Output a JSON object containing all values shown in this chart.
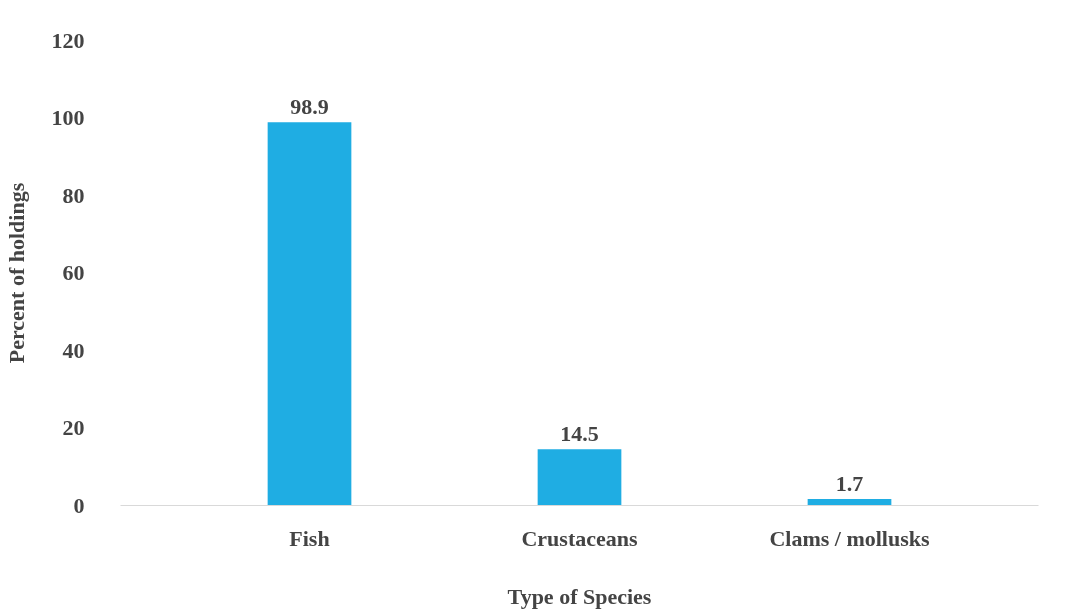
{
  "chart_data": {
    "type": "bar",
    "xlabel": "Type of Species",
    "ylabel": "Percent of holdings",
    "categories": [
      "Fish",
      "Crustaceans",
      "Clams / mollusks"
    ],
    "values": [
      98.9,
      14.5,
      1.7
    ],
    "color": "#1fade3",
    "ylim": [
      0,
      120
    ],
    "yticks": [
      0,
      20,
      40,
      60,
      80,
      100,
      120
    ],
    "grid": false,
    "data_labels": true
  }
}
